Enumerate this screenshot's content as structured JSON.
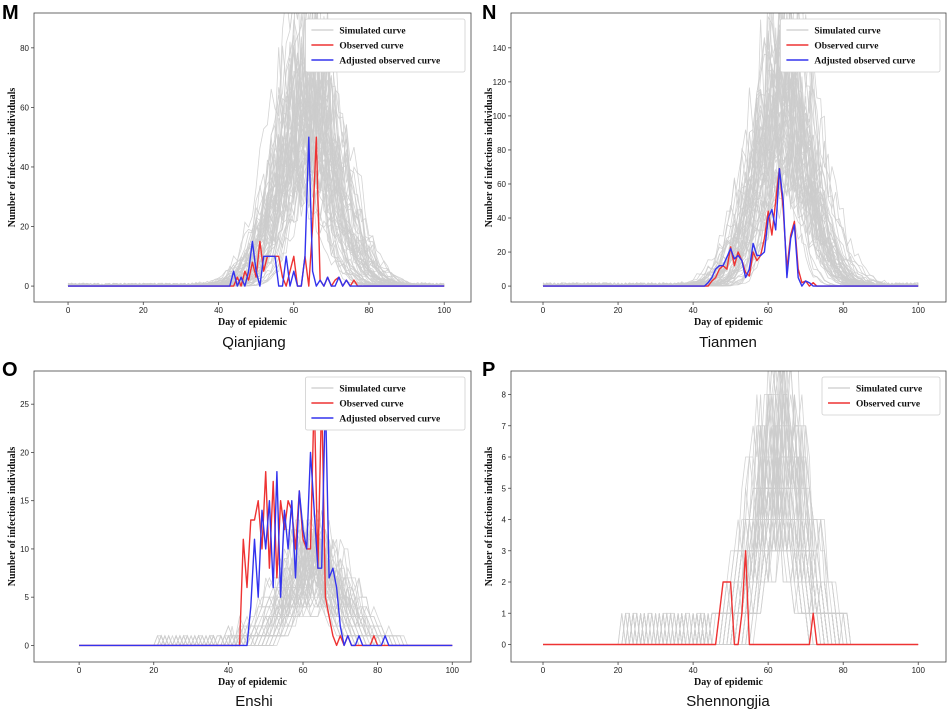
{
  "figure": {
    "background": "#ffffff",
    "colors": {
      "simulated": "#cccccc",
      "observed": "#ee3333",
      "adjusted": "#3333ee"
    }
  },
  "chart_data": [
    {
      "type": "line",
      "panel": "M",
      "caption": "Qianjiang",
      "xlabel": "Day of epidemic",
      "ylabel": "Number of infections individuals",
      "xlim": [
        -4,
        101
      ],
      "ylim": [
        -4,
        88
      ],
      "xticks": [
        0,
        20,
        40,
        60,
        80,
        100
      ],
      "yticks": [
        0,
        20,
        40,
        60,
        80
      ],
      "legend_position": "top-right",
      "simulated": {
        "name": "Simulated curve",
        "peak_day": 64,
        "peak_value": 85,
        "spread": 7,
        "baseline": 1
      },
      "series": [
        {
          "name": "Observed curve",
          "color": "#ee3333",
          "x": [
            0,
            44,
            45,
            46,
            47,
            48,
            49,
            50,
            51,
            52,
            53,
            54,
            55,
            56,
            57,
            58,
            59,
            60,
            61,
            62,
            63,
            64,
            65,
            66,
            67,
            68,
            69,
            70,
            71,
            72,
            73,
            74,
            75,
            76,
            77,
            78,
            100
          ],
          "y": [
            0,
            0,
            3,
            0,
            5,
            2,
            8,
            3,
            15,
            5,
            10,
            10,
            10,
            10,
            3,
            0,
            5,
            10,
            0,
            0,
            10,
            0,
            20,
            50,
            2,
            0,
            3,
            0,
            2,
            3,
            0,
            2,
            0,
            2,
            0,
            0,
            0
          ]
        },
        {
          "name": "Adjusted observed curve",
          "color": "#3333ee",
          "x": [
            0,
            43,
            44,
            45,
            46,
            47,
            48,
            49,
            50,
            51,
            52,
            53,
            54,
            55,
            56,
            57,
            58,
            59,
            60,
            61,
            62,
            63,
            64,
            65,
            66,
            67,
            68,
            69,
            70,
            71,
            72,
            73,
            74,
            75,
            100
          ],
          "y": [
            0,
            0,
            5,
            0,
            3,
            0,
            5,
            15,
            5,
            0,
            10,
            10,
            10,
            10,
            0,
            0,
            10,
            0,
            5,
            0,
            0,
            10,
            50,
            5,
            0,
            2,
            0,
            3,
            0,
            0,
            3,
            0,
            2,
            0,
            0
          ]
        }
      ]
    },
    {
      "type": "line",
      "panel": "N",
      "caption": "Tianmen",
      "xlabel": "Day of epidemic",
      "ylabel": "Number of infections individuals",
      "xlim": [
        -4,
        101
      ],
      "ylim": [
        -7,
        154
      ],
      "xticks": [
        0,
        20,
        40,
        60,
        80,
        100
      ],
      "yticks": [
        0,
        20,
        40,
        60,
        80,
        100,
        120,
        140
      ],
      "legend_position": "top-right",
      "simulated": {
        "name": "Simulated curve",
        "peak_day": 64,
        "peak_value": 147,
        "spread": 6.5,
        "baseline": 2
      },
      "series": [
        {
          "name": "Observed curve",
          "color": "#ee3333",
          "x": [
            0,
            44,
            45,
            46,
            47,
            48,
            49,
            50,
            51,
            52,
            53,
            54,
            55,
            56,
            57,
            58,
            59,
            60,
            61,
            62,
            63,
            64,
            65,
            66,
            67,
            68,
            69,
            70,
            71,
            72,
            73,
            100
          ],
          "y": [
            0,
            0,
            3,
            5,
            10,
            12,
            10,
            23,
            12,
            20,
            15,
            8,
            6,
            20,
            15,
            18,
            28,
            44,
            30,
            50,
            69,
            45,
            10,
            30,
            38,
            10,
            2,
            3,
            0,
            2,
            0,
            0
          ]
        },
        {
          "name": "Adjusted observed curve",
          "color": "#3333ee",
          "x": [
            0,
            43,
            44,
            45,
            46,
            47,
            48,
            49,
            50,
            51,
            52,
            53,
            54,
            55,
            56,
            57,
            58,
            59,
            60,
            61,
            62,
            63,
            64,
            65,
            66,
            67,
            68,
            69,
            70,
            71,
            72,
            100
          ],
          "y": [
            0,
            0,
            2,
            5,
            10,
            12,
            12,
            17,
            22,
            16,
            18,
            15,
            5,
            10,
            25,
            18,
            18,
            20,
            40,
            45,
            33,
            69,
            50,
            5,
            28,
            36,
            5,
            0,
            3,
            2,
            0,
            0
          ]
        }
      ]
    },
    {
      "type": "line",
      "panel": "O",
      "caption": "Enshi",
      "xlabel": "Day of epidemic",
      "ylabel": "Number of infections individuals",
      "xlim": [
        -7,
        101
      ],
      "ylim": [
        -1.2,
        27.3
      ],
      "xticks": [
        0,
        20,
        40,
        60,
        80,
        100
      ],
      "yticks": [
        0,
        5,
        10,
        15,
        20,
        25
      ],
      "legend_position": "top-right",
      "simulated": {
        "name": "Simulated curve",
        "peak_day": 63,
        "peak_value": 11,
        "spread": 7,
        "baseline": 0
      },
      "series": [
        {
          "name": "Observed curve",
          "color": "#ee3333",
          "x": [
            0,
            43,
            44,
            45,
            46,
            47,
            48,
            49,
            50,
            51,
            52,
            53,
            54,
            55,
            56,
            57,
            58,
            59,
            60,
            61,
            62,
            63,
            64,
            65,
            66,
            67,
            68,
            69,
            70,
            71,
            72,
            73,
            74,
            75,
            76,
            77,
            78,
            79,
            80,
            100
          ],
          "y": [
            0,
            0,
            11,
            6,
            13,
            13,
            15,
            10,
            18,
            8,
            17,
            7,
            15,
            12,
            15,
            14,
            10,
            16,
            11,
            10,
            10,
            26,
            8,
            26,
            5,
            3,
            1,
            0,
            1,
            0,
            1,
            0,
            0,
            0,
            0,
            0,
            0,
            1,
            0,
            0
          ]
        },
        {
          "name": "Adjusted observed curve",
          "color": "#3333ee",
          "x": [
            0,
            45,
            46,
            47,
            48,
            49,
            50,
            51,
            52,
            53,
            54,
            55,
            56,
            57,
            58,
            59,
            60,
            61,
            62,
            63,
            64,
            65,
            66,
            67,
            68,
            69,
            70,
            71,
            72,
            73,
            74,
            75,
            76,
            77,
            78,
            79,
            80,
            81,
            82,
            83,
            100
          ],
          "y": [
            0,
            0,
            4,
            11,
            5,
            14,
            10,
            15,
            6,
            18,
            5,
            14,
            10,
            15,
            7,
            16,
            12,
            10,
            20,
            14,
            8,
            8,
            26,
            7,
            8,
            6,
            2,
            0,
            1,
            0,
            0,
            1,
            0,
            0,
            0,
            0,
            0,
            0,
            1,
            0,
            0
          ]
        }
      ]
    },
    {
      "type": "line",
      "panel": "P",
      "caption": "Shennongjia",
      "xlabel": "Day of epidemic",
      "ylabel": "Number of infections individuals",
      "xlim": [
        -4,
        101
      ],
      "ylim": [
        -0.4,
        8.4
      ],
      "xticks": [
        0,
        20,
        40,
        60,
        80,
        100
      ],
      "yticks": [
        0,
        1,
        2,
        3,
        4,
        5,
        6,
        7,
        8
      ],
      "legend_position": "top-right",
      "simulated": {
        "name": "Simulated curve",
        "peak_day": 63,
        "peak_value": 8,
        "spread": 6,
        "baseline": 0
      },
      "series": [
        {
          "name": "Observed curve",
          "color": "#ee3333",
          "x": [
            0,
            46,
            47,
            48,
            49,
            50,
            51,
            52,
            53,
            54,
            55,
            56,
            70,
            71,
            72,
            73,
            100
          ],
          "y": [
            0,
            0,
            1,
            2,
            2,
            2,
            0,
            0,
            1,
            3,
            0,
            0,
            0,
            0,
            1,
            0,
            0
          ]
        }
      ]
    }
  ]
}
